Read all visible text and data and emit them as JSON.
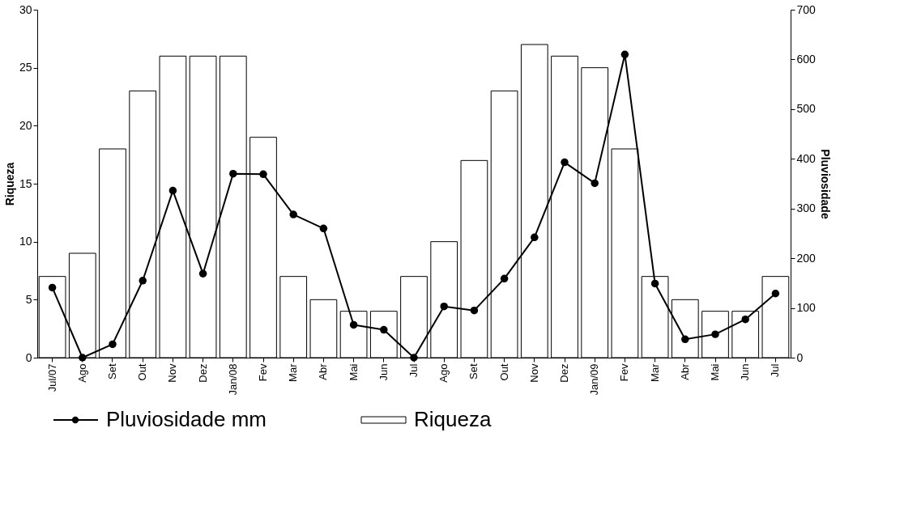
{
  "chart_data": {
    "type": "bar",
    "categories": [
      "Jul/07",
      "Ago",
      "Set",
      "Out",
      "Nov",
      "Dez",
      "Jan/08",
      "Fev",
      "Mar",
      "Abr",
      "Mai",
      "Jun",
      "Jul",
      "Ago",
      "Set",
      "Out",
      "Nov",
      "Dez",
      "Jan/09",
      "Fev",
      "Mar",
      "Abr",
      "Mai",
      "Jun",
      "Jul"
    ],
    "series": [
      {
        "name": "Pluviosidade mm",
        "type": "line",
        "axis": "y2",
        "color": "#000000",
        "values": [
          141,
          0,
          27,
          155,
          336,
          169,
          370,
          369,
          288,
          260,
          66,
          56,
          0,
          103,
          95,
          159,
          242,
          393,
          351,
          610,
          149,
          37,
          47,
          77,
          129
        ]
      },
      {
        "name": "Riqueza",
        "color": "#ffffff",
        "values": [
          7,
          9,
          18,
          23,
          26,
          26,
          26,
          19,
          7,
          5,
          4,
          4,
          7,
          10,
          17,
          23,
          27,
          26,
          25,
          18,
          7,
          5,
          4,
          4,
          7
        ]
      }
    ],
    "ylabel": "Riqueza",
    "y2label": "Pluviosidade",
    "ylim": [
      0,
      30
    ],
    "yticks": [
      0,
      5,
      10,
      15,
      20,
      25,
      30
    ],
    "y2lim": [
      0,
      700
    ],
    "y2ticks": [
      0,
      100,
      200,
      300,
      400,
      500,
      600,
      700
    ],
    "marker": "circle",
    "line_style": "solid",
    "grid": false,
    "legend": "bottom"
  }
}
